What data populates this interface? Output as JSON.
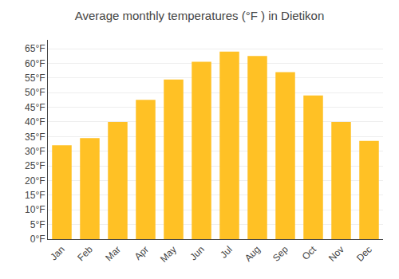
{
  "chart_data": {
    "type": "bar",
    "title": "Average monthly temperatures (°F ) in Dietikon",
    "categories": [
      "Jan",
      "Feb",
      "Mar",
      "Apr",
      "May",
      "Jun",
      "Jul",
      "Aug",
      "Sep",
      "Oct",
      "Nov",
      "Dec"
    ],
    "values": [
      32,
      34.5,
      40,
      47.5,
      54.5,
      60.5,
      64,
      62.5,
      57,
      49,
      40,
      33.5
    ],
    "color": "#FFC125",
    "ylim": [
      0,
      68
    ],
    "yticks": [
      {
        "value": 0,
        "label": "0°F"
      },
      {
        "value": 5,
        "label": "5°F"
      },
      {
        "value": 10,
        "label": "10°F"
      },
      {
        "value": 15,
        "label": "15°F"
      },
      {
        "value": 20,
        "label": "20°F"
      },
      {
        "value": 25,
        "label": "25°F"
      },
      {
        "value": 30,
        "label": "30°F"
      },
      {
        "value": 35,
        "label": "35°F"
      },
      {
        "value": 40,
        "label": "40°F"
      },
      {
        "value": 45,
        "label": "45°F"
      },
      {
        "value": 50,
        "label": "50°F"
      },
      {
        "value": 55,
        "label": "55°F"
      },
      {
        "value": 60,
        "label": "60°F"
      },
      {
        "value": 65,
        "label": "65°F"
      }
    ],
    "grid": true
  }
}
